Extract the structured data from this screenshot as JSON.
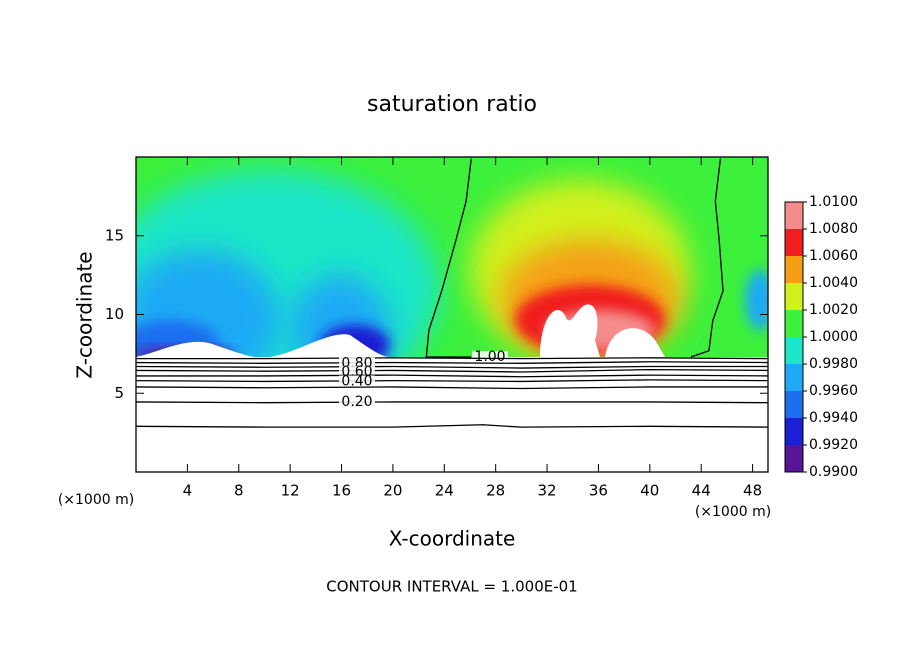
{
  "chart_data": {
    "type": "contour",
    "title": "saturation ratio",
    "x_label": "X-coordinate",
    "y_label": "Z-coordinate",
    "x_unit_left": "(×1000 m)",
    "x_unit_right": "(×1000 m)",
    "footer": "CONTOUR INTERVAL = 1.000E-01",
    "xlim": [
      0,
      49.2
    ],
    "ylim": [
      0,
      20
    ],
    "xticks": [
      4,
      8,
      12,
      16,
      20,
      24,
      28,
      32,
      36,
      40,
      44,
      48
    ],
    "yticks": [
      5,
      10,
      15
    ],
    "colorbar": {
      "ticks": [
        {
          "value": 0.99,
          "label": "0.9900"
        },
        {
          "value": 0.992,
          "label": "0.9920"
        },
        {
          "value": 0.994,
          "label": "0.9940"
        },
        {
          "value": 0.996,
          "label": "0.9960"
        },
        {
          "value": 0.998,
          "label": "0.9980"
        },
        {
          "value": 1.0,
          "label": "1.0000"
        },
        {
          "value": 1.002,
          "label": "1.0020"
        },
        {
          "value": 1.004,
          "label": "1.0040"
        },
        {
          "value": 1.006,
          "label": "1.0060"
        },
        {
          "value": 1.008,
          "label": "1.0080"
        },
        {
          "value": 1.01,
          "label": "1.0100"
        }
      ],
      "colors": [
        "#5a1496",
        "#1e1ed2",
        "#1e6ef0",
        "#1eaaf5",
        "#1ee6c8",
        "#3cf03c",
        "#d2f01e",
        "#f5a014",
        "#f01e1e",
        "#f58c8c"
      ]
    },
    "contours": [
      {
        "value": 1.0,
        "label": "1.00",
        "x": [
          26.1,
          25.7,
          24.9,
          23.8,
          22.8,
          22.6,
          26.1
        ],
        "y": [
          19.9,
          17.2,
          14.7,
          11.5,
          9.0,
          7.3,
          7.3
        ]
      },
      {
        "value": 1.0,
        "x": [
          45.5,
          45.1,
          45.4,
          45.7,
          44.9,
          44.6,
          43.2
        ],
        "y": [
          19.9,
          17.2,
          14.7,
          11.5,
          9.6,
          7.7,
          7.3
        ]
      },
      {
        "value": 0.9,
        "x": [
          0,
          10,
          20,
          30,
          40,
          49.2
        ],
        "y": [
          7.2,
          7.2,
          7.25,
          7.2,
          7.25,
          7.2
        ]
      },
      {
        "value": 0.8,
        "label": "0.80",
        "x": [
          0,
          10,
          20,
          30,
          40,
          49.2
        ],
        "y": [
          6.95,
          6.9,
          6.95,
          6.9,
          7.0,
          6.95
        ]
      },
      {
        "value": 0.7,
        "x": [
          0,
          10,
          20,
          30,
          40,
          49.2
        ],
        "y": [
          6.7,
          6.65,
          6.7,
          6.6,
          6.7,
          6.7
        ]
      },
      {
        "value": 0.6,
        "label": "0.60",
        "x": [
          0,
          10,
          20,
          30,
          40,
          49.2
        ],
        "y": [
          6.45,
          6.4,
          6.45,
          6.35,
          6.5,
          6.45
        ]
      },
      {
        "value": 0.5,
        "x": [
          0,
          10,
          20,
          30,
          40,
          49.2
        ],
        "y": [
          6.1,
          6.1,
          6.15,
          6.05,
          6.15,
          6.1
        ]
      },
      {
        "value": 0.4,
        "label": "0.40",
        "x": [
          0,
          10,
          20,
          30,
          40,
          49.2
        ],
        "y": [
          5.8,
          5.75,
          5.8,
          5.75,
          5.85,
          5.8
        ]
      },
      {
        "value": 0.3,
        "x": [
          0,
          10,
          20,
          30,
          40,
          49.2
        ],
        "y": [
          5.4,
          5.35,
          5.4,
          5.3,
          5.4,
          5.4
        ]
      },
      {
        "value": 0.2,
        "label": "0.20",
        "x": [
          0,
          10,
          20,
          30,
          40,
          49.2
        ],
        "y": [
          4.45,
          4.4,
          4.45,
          4.45,
          4.45,
          4.4
        ]
      },
      {
        "value": 0.1,
        "x": [
          0,
          10,
          20,
          27,
          30,
          40,
          49.2
        ],
        "y": [
          2.9,
          2.85,
          2.85,
          3.0,
          2.85,
          2.9,
          2.85
        ]
      }
    ]
  }
}
